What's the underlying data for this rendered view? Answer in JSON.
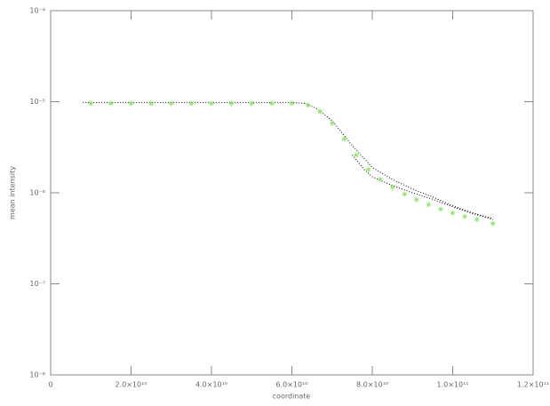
{
  "chart_data": {
    "type": "line",
    "xlabel": "coordinate",
    "ylabel": "mean intensity",
    "yscale": "log",
    "xlim": [
      0,
      120000000000
    ],
    "xticks": [
      {
        "value": 0,
        "label": "0"
      },
      {
        "value": 20000000000,
        "label": "2.0×10¹⁰"
      },
      {
        "value": 40000000000,
        "label": "4.0×10¹⁰"
      },
      {
        "value": 60000000000,
        "label": "6.0×10¹⁰"
      },
      {
        "value": 80000000000,
        "label": "8.0×10¹⁰"
      },
      {
        "value": 100000000000,
        "label": "1.0×10¹¹"
      },
      {
        "value": 120000000000,
        "label": "1.2×10¹¹"
      }
    ],
    "ylim": [
      1e-08,
      0.0001
    ],
    "yticks": [
      {
        "value": 1e-08,
        "label": "10⁻⁸"
      },
      {
        "value": 1e-07,
        "label": "10⁻⁷"
      },
      {
        "value": 1e-06,
        "label": "10⁻⁶"
      },
      {
        "value": 1e-05,
        "label": "10⁻⁵"
      },
      {
        "value": 0.0001,
        "label": "10⁻⁴"
      }
    ],
    "series": [
      {
        "color": "#000000",
        "style": "dotted",
        "x": [
          8000000000,
          20000000000,
          30000000000,
          40000000000,
          50000000000,
          60000000000,
          63000000000,
          66000000000,
          70000000000,
          75000000000,
          80000000000,
          85000000000,
          90000000000,
          95000000000,
          100000000000,
          105000000000,
          110000000000
        ],
        "values": [
          9.8e-06,
          9.8e-06,
          9.8e-06,
          9.8e-06,
          9.8e-06,
          9.8e-06,
          9.6e-06,
          8.5e-06,
          6.2e-06,
          3.3e-06,
          1.9e-06,
          1.4e-06,
          1.1e-06,
          9e-07,
          7.2e-07,
          6e-07,
          5.2e-07
        ]
      },
      {
        "color": "#000000",
        "style": "dotted",
        "x": [
          75000000000,
          78000000000,
          80000000000,
          85000000000,
          90000000000,
          95000000000,
          100000000000,
          105000000000,
          110000000000
        ],
        "values": [
          2.6e-06,
          1.8e-06,
          1.5e-06,
          1.2e-06,
          1e-06,
          8.5e-07,
          7e-07,
          5.9e-07,
          5.1e-07
        ]
      },
      {
        "color": "#90e070",
        "style": "asterisk",
        "x": [
          10000000000,
          15000000000,
          20000000000,
          25000000000,
          30000000000,
          35000000000,
          40000000000,
          45000000000,
          50000000000,
          55000000000,
          60000000000,
          64000000000,
          67000000000,
          70000000000,
          73000000000,
          76000000000,
          79000000000,
          82000000000,
          85000000000,
          88000000000,
          91000000000,
          94000000000,
          97000000000,
          100000000000,
          103000000000,
          106000000000,
          110000000000
        ],
        "values": [
          9.6e-06,
          9.6e-06,
          9.6e-06,
          9.6e-06,
          9.6e-06,
          9.6e-06,
          9.6e-06,
          9.6e-06,
          9.6e-06,
          9.6e-06,
          9.6e-06,
          9.2e-06,
          7.8e-06,
          5.8e-06,
          3.9e-06,
          2.6e-06,
          1.8e-06,
          1.4e-06,
          1.15e-06,
          9.7e-07,
          8.4e-07,
          7.4e-07,
          6.6e-07,
          6e-07,
          5.5e-07,
          5.1e-07,
          4.6e-07
        ]
      }
    ]
  }
}
